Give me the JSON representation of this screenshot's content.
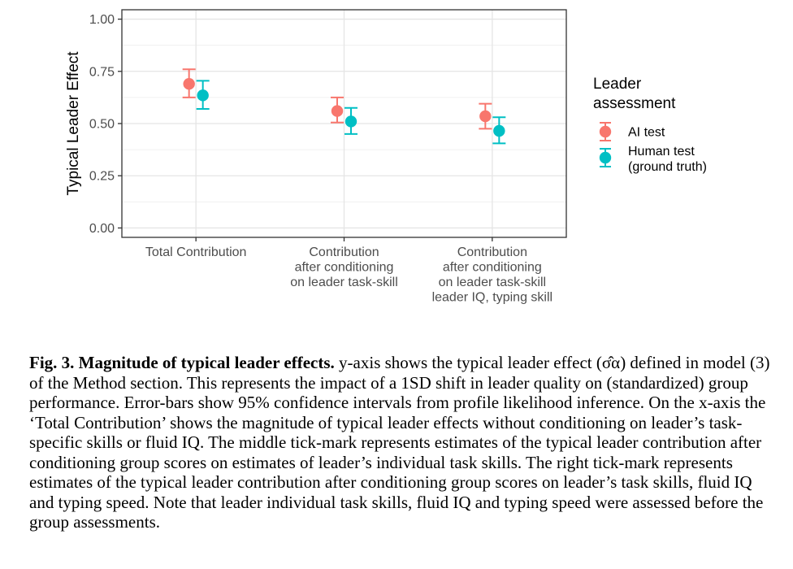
{
  "chart_data": {
    "type": "scatter",
    "subtype": "point-with-error-bars",
    "ylabel": "Typical Leader Effect",
    "ylim": [
      0,
      1
    ],
    "yticks": [
      "0.00",
      "0.25",
      "0.50",
      "0.75",
      "1.00"
    ],
    "ytick_values": [
      0,
      0.25,
      0.5,
      0.75,
      1.0
    ],
    "categories": [
      [
        "Total Contribution"
      ],
      [
        "Contribution",
        "after conditioning",
        "on leader task-skill"
      ],
      [
        "Contribution",
        "after conditioning",
        "on leader task-skill",
        "leader IQ, typing skill"
      ]
    ],
    "legend": {
      "title": [
        "Leader",
        "assessment"
      ],
      "placement": "right"
    },
    "grid": true,
    "series": [
      {
        "name": [
          "AI test"
        ],
        "color": "#f8766d",
        "values": [
          0.69,
          0.56,
          0.535
        ],
        "lower": [
          0.625,
          0.505,
          0.475
        ],
        "upper": [
          0.76,
          0.625,
          0.595
        ]
      },
      {
        "name": [
          "Human test",
          "(ground truth)"
        ],
        "color": "#00bfc4",
        "values": [
          0.635,
          0.51,
          0.465
        ],
        "lower": [
          0.57,
          0.45,
          0.405
        ],
        "upper": [
          0.705,
          0.575,
          0.53
        ]
      }
    ]
  },
  "caption": {
    "bold": "Fig. 3. Magnitude of typical leader effects.",
    "text": " y-axis shows the typical leader effect (σ̂α) defined in model (3) of the Method section. This represents the impact of a 1SD shift in leader quality on (standardized) group performance. Error-bars show 95% confidence intervals from profile likelihood inference. On the x-axis the ‘Total Contribution’ shows the magnitude of typical leader effects without conditioning on leader’s task-specific skills or fluid IQ. The middle tick-mark represents estimates of the typical leader contribution after conditioning group scores on estimates of leader’s individual task skills. The right tick-mark represents estimates of the typical leader contribution after conditioning group scores on leader’s task skills, fluid IQ and typing speed. Note that leader individual task skills, fluid IQ and typing speed were assessed before the group assessments."
  }
}
